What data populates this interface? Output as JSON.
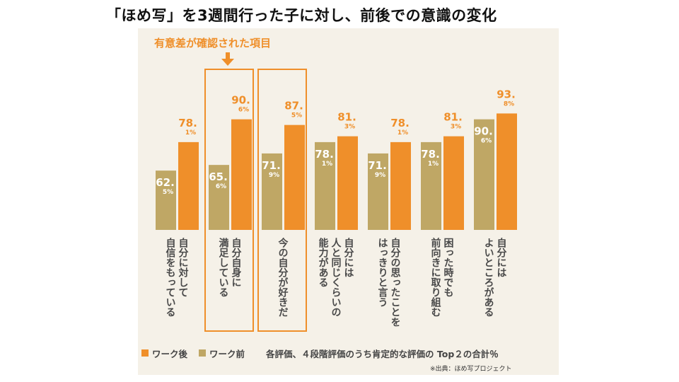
{
  "title": "「ほめ写」を3週間行った子に対し、前後での意識の変化",
  "annotation": "有意差が確認された項目",
  "colors": {
    "before": "#bfa765",
    "after": "#ef8f2a",
    "highlight": "#ef8f2a"
  },
  "chart_data": {
    "type": "bar",
    "categories": [
      [
        "自分に対して",
        "自信をもっている"
      ],
      [
        "自分自身に",
        "満足している"
      ],
      [
        "今の自分が好きだ"
      ],
      [
        "自分には",
        "人と同じくらいの",
        "能力がある"
      ],
      [
        "自分の思ったことを",
        "はっきりと言う"
      ],
      [
        "困った時でも",
        "前向きに取り組む"
      ],
      [
        "自分には",
        "よいところがある"
      ]
    ],
    "series": [
      {
        "name": "ワーク前",
        "values": [
          62.5,
          65.6,
          71.9,
          78.1,
          71.9,
          78.1,
          90.6
        ]
      },
      {
        "name": "ワーク後",
        "values": [
          78.1,
          90.6,
          87.5,
          81.3,
          78.1,
          81.3,
          93.8
        ]
      }
    ],
    "ylim": [
      30,
      100
    ],
    "highlighted_categories": [
      1,
      2
    ],
    "legend": [
      "ワーク後",
      "ワーク前"
    ],
    "note": "各評価、４段階評価のうち肯定的な評価の Top２の合計％"
  },
  "source": "※出典：ほめ写プロジェクト"
}
